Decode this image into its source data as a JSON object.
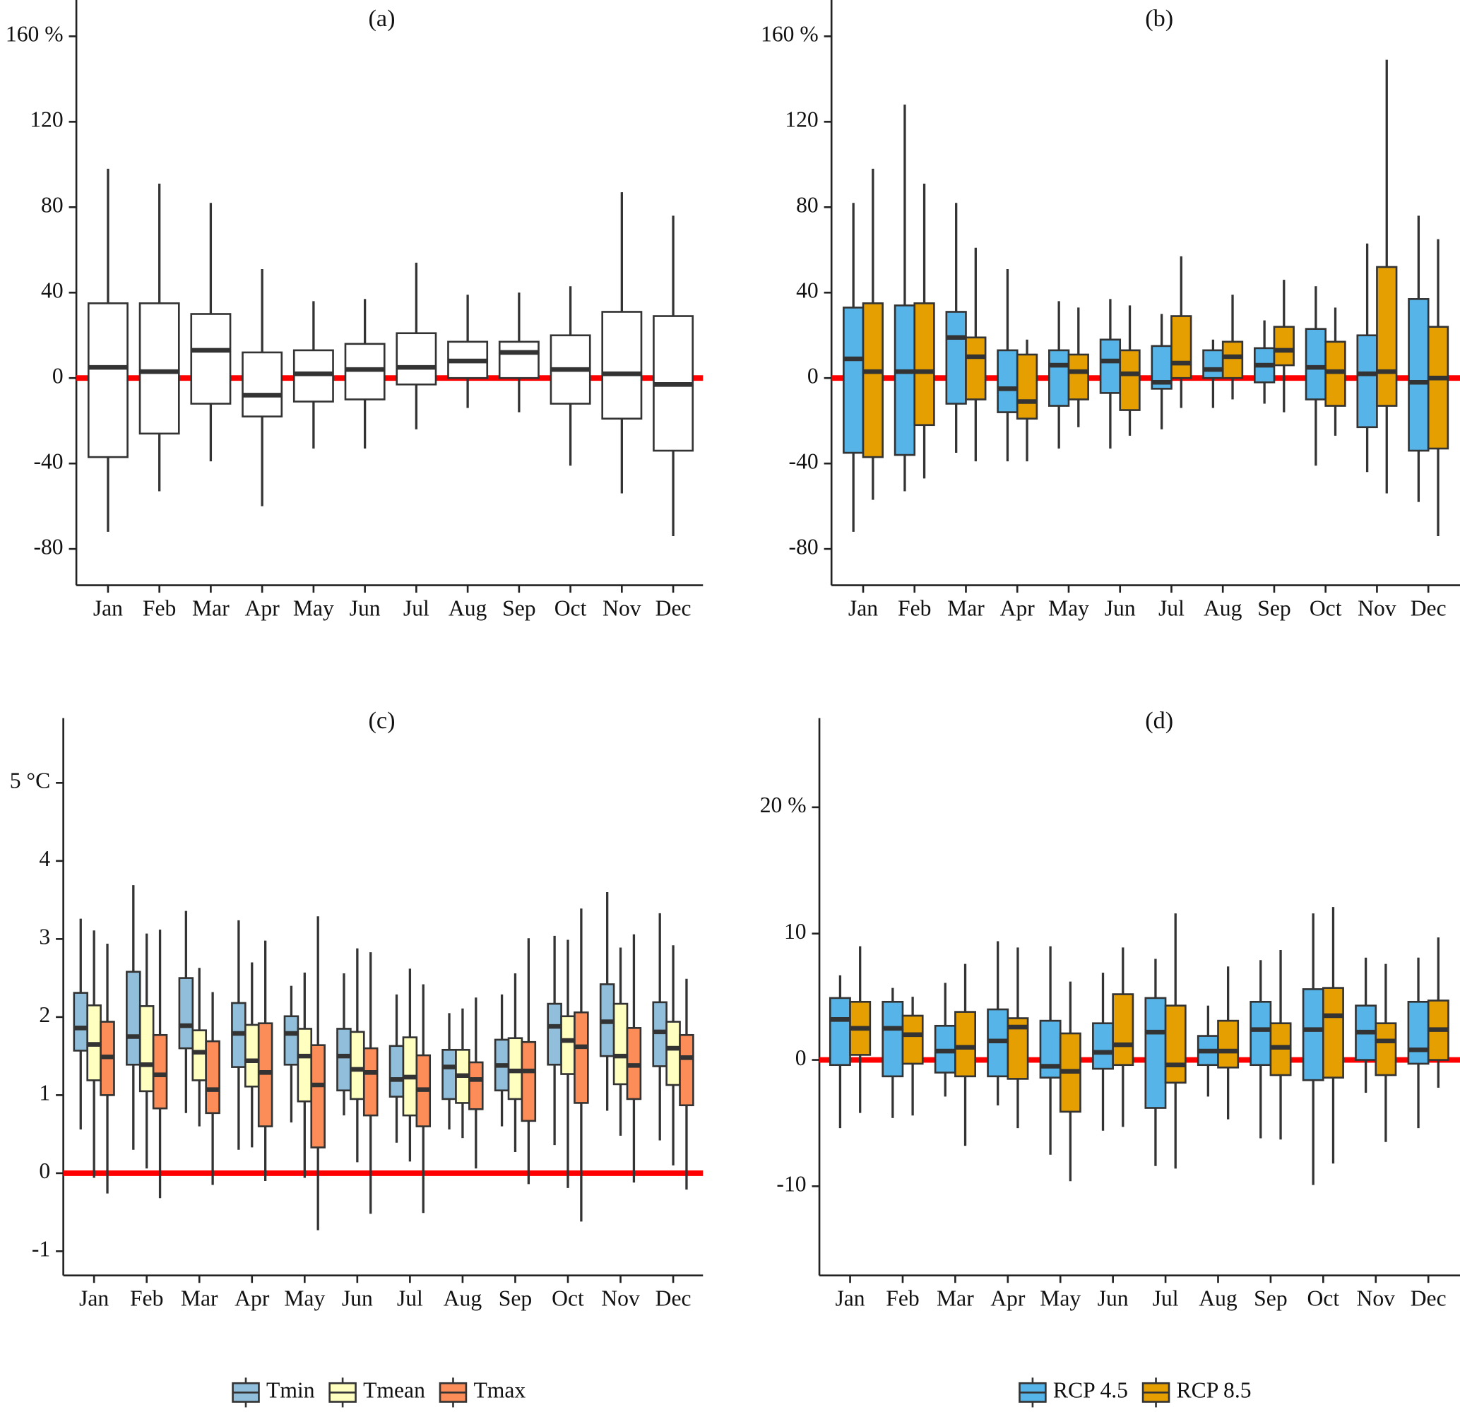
{
  "chart_data": [
    {
      "type": "box",
      "title": "(a)",
      "categories": [
        "Jan",
        "Feb",
        "Mar",
        "Apr",
        "May",
        "Jun",
        "Jul",
        "Aug",
        "Sep",
        "Oct",
        "Nov",
        "Dec"
      ],
      "series": [
        {
          "color": "#ffffff",
          "max": [
            98,
            91,
            82,
            51,
            36,
            37,
            54,
            39,
            40,
            43,
            87,
            76
          ],
          "q3": [
            35,
            35,
            30,
            12,
            13,
            16,
            21,
            17,
            17,
            20,
            31,
            29
          ],
          "median": [
            5,
            3,
            13,
            -8,
            2,
            4,
            5,
            8,
            12,
            4,
            2,
            -3
          ],
          "q1": [
            -37,
            -26,
            -12,
            -18,
            -11,
            -10,
            -3,
            0,
            0,
            -12,
            -19,
            -34
          ],
          "min": [
            -72,
            -53,
            -39,
            -60,
            -33,
            -33,
            -24,
            -14,
            -16,
            -41,
            -54,
            -74
          ]
        }
      ],
      "ylim": [
        -97,
        177
      ],
      "yticks": [
        -80,
        -40,
        0,
        40,
        80,
        120,
        {
          "value": 160,
          "label": "160 %"
        }
      ],
      "reference_line": {
        "value": 0,
        "color": "#ff0000"
      }
    },
    {
      "type": "box",
      "title": "(b)",
      "categories": [
        "Jan",
        "Feb",
        "Mar",
        "Apr",
        "May",
        "Jun",
        "Jul",
        "Aug",
        "Sep",
        "Oct",
        "Nov",
        "Dec"
      ],
      "series": [
        {
          "color": "#56B4E9",
          "max": [
            82,
            128,
            82,
            51,
            36,
            37,
            30,
            18,
            27,
            43,
            63,
            76
          ],
          "q3": [
            33,
            34,
            31,
            13,
            13,
            18,
            15,
            13,
            14,
            23,
            20,
            37
          ],
          "median": [
            9,
            3,
            19,
            -5,
            6,
            8,
            -2,
            4,
            6,
            5,
            2,
            -2
          ],
          "q1": [
            -35,
            -36,
            -12,
            -16,
            -13,
            -7,
            -5,
            0,
            -2,
            -10,
            -23,
            -34
          ],
          "min": [
            -72,
            -53,
            -35,
            -39,
            -33,
            -33,
            -24,
            -14,
            -12,
            -41,
            -44,
            -58
          ]
        },
        {
          "color": "#E69F00",
          "max": [
            98,
            91,
            61,
            18,
            33,
            34,
            57,
            39,
            46,
            33,
            149,
            65
          ],
          "q3": [
            35,
            35,
            19,
            11,
            11,
            13,
            29,
            17,
            24,
            17,
            52,
            24
          ],
          "median": [
            3,
            3,
            10,
            -11,
            3,
            2,
            7,
            10,
            13,
            3,
            3,
            0
          ],
          "q1": [
            -37,
            -22,
            -10,
            -19,
            -10,
            -15,
            0,
            0,
            6,
            -13,
            -13,
            -33
          ],
          "min": [
            -57,
            -47,
            -39,
            -39,
            -23,
            -27,
            -14,
            -10,
            -16,
            -27,
            -54,
            -74
          ]
        }
      ],
      "ylim": [
        -97,
        177
      ],
      "yticks": [
        -80,
        -40,
        0,
        40,
        80,
        120,
        {
          "value": 160,
          "label": "160 %"
        }
      ],
      "reference_line": {
        "value": 0,
        "color": "#ff0000"
      }
    },
    {
      "type": "box",
      "title": "(c)",
      "categories": [
        "Jan",
        "Feb",
        "Mar",
        "Apr",
        "May",
        "Jun",
        "Jul",
        "Aug",
        "Sep",
        "Oct",
        "Nov",
        "Dec"
      ],
      "series": [
        {
          "name": "Tmin",
          "color": "#91BFDB",
          "max": [
            3.26,
            3.69,
            3.36,
            3.24,
            2.4,
            2.56,
            2.29,
            2.05,
            2.29,
            3.04,
            3.6,
            3.33
          ],
          "q3": [
            2.31,
            2.58,
            2.5,
            2.18,
            2.01,
            1.85,
            1.63,
            1.58,
            1.71,
            2.17,
            2.42,
            2.19
          ],
          "median": [
            1.86,
            1.75,
            1.89,
            1.79,
            1.79,
            1.5,
            1.2,
            1.36,
            1.38,
            1.88,
            1.94,
            1.81
          ],
          "q1": [
            1.57,
            1.39,
            1.6,
            1.36,
            1.39,
            1.06,
            0.98,
            0.95,
            1.06,
            1.39,
            1.5,
            1.37
          ],
          "min": [
            0.56,
            0.3,
            0.77,
            0.3,
            0.65,
            0.74,
            0.39,
            0.56,
            0.6,
            0.36,
            0.8,
            0.42
          ]
        },
        {
          "name": "Tmean",
          "color": "#FFFFBF",
          "max": [
            3.11,
            3.07,
            2.63,
            2.7,
            2.57,
            2.88,
            2.62,
            2.11,
            2.56,
            2.99,
            2.89,
            2.92
          ],
          "q3": [
            2.15,
            2.14,
            1.83,
            1.9,
            1.85,
            1.81,
            1.74,
            1.58,
            1.73,
            2.01,
            2.17,
            1.94
          ],
          "median": [
            1.65,
            1.39,
            1.55,
            1.44,
            1.5,
            1.33,
            1.23,
            1.25,
            1.31,
            1.7,
            1.5,
            1.6
          ],
          "q1": [
            1.19,
            1.05,
            1.19,
            1.11,
            0.92,
            0.95,
            0.74,
            0.9,
            0.95,
            1.27,
            1.14,
            1.13
          ],
          "min": [
            -0.06,
            0.06,
            0.6,
            0.33,
            -0.06,
            0.14,
            0.15,
            0.45,
            0.27,
            -0.19,
            0.48,
            0.1
          ]
        },
        {
          "name": "Tmax",
          "color": "#FC8D59",
          "max": [
            2.94,
            3.12,
            2.32,
            2.98,
            3.29,
            2.83,
            2.42,
            2.25,
            3.01,
            3.39,
            3.06,
            2.49
          ],
          "q3": [
            1.94,
            1.77,
            1.69,
            1.92,
            1.64,
            1.6,
            1.51,
            1.42,
            1.68,
            2.06,
            1.86,
            1.77
          ],
          "median": [
            1.49,
            1.26,
            1.07,
            1.29,
            1.13,
            1.29,
            1.07,
            1.2,
            1.31,
            1.62,
            1.38,
            1.48
          ],
          "q1": [
            1.0,
            0.83,
            0.77,
            0.6,
            0.33,
            0.74,
            0.6,
            0.82,
            0.67,
            0.9,
            0.95,
            0.87
          ],
          "min": [
            -0.26,
            -0.32,
            -0.15,
            -0.1,
            -0.73,
            -0.52,
            -0.51,
            0.06,
            -0.14,
            -0.62,
            -0.12,
            -0.21
          ]
        }
      ],
      "ylim": [
        -1.31,
        5.83
      ],
      "yticks": [
        -1,
        0,
        1,
        2,
        3,
        4,
        {
          "value": 5,
          "label": "5 °C"
        }
      ],
      "reference_line": {
        "value": 0,
        "color": "#ff0000"
      },
      "legend": "bottom"
    },
    {
      "type": "box",
      "title": "(d)",
      "categories": [
        "Jan",
        "Feb",
        "Mar",
        "Apr",
        "May",
        "Jun",
        "Jul",
        "Aug",
        "Sep",
        "Oct",
        "Nov",
        "Dec"
      ],
      "series": [
        {
          "name": "RCP 4.5",
          "color": "#56B4E9",
          "max": [
            6.7,
            5.7,
            6.1,
            9.4,
            9.0,
            6.9,
            8.0,
            4.3,
            7.9,
            11.6,
            8.1,
            8.1
          ],
          "q3": [
            4.9,
            4.6,
            2.7,
            4.0,
            3.1,
            2.9,
            4.9,
            1.9,
            4.6,
            5.6,
            4.3,
            4.6
          ],
          "median": [
            3.2,
            2.5,
            0.7,
            1.5,
            -0.5,
            0.6,
            2.2,
            0.7,
            2.4,
            2.4,
            2.2,
            0.8
          ],
          "q1": [
            -0.4,
            -1.3,
            -1.0,
            -1.3,
            -1.4,
            -0.7,
            -3.8,
            -0.4,
            -0.4,
            -1.6,
            0,
            -0.3
          ],
          "min": [
            -5.4,
            -4.6,
            -2.9,
            -3.6,
            -7.5,
            -5.6,
            -8.4,
            -2.9,
            -6.2,
            -9.9,
            -2.6,
            -5.4
          ]
        },
        {
          "name": "RCP 8.5",
          "color": "#E69F00",
          "max": [
            9.0,
            5.0,
            7.6,
            8.9,
            6.2,
            8.9,
            11.6,
            7.4,
            8.7,
            12.1,
            7.6,
            9.7
          ],
          "q3": [
            4.6,
            3.5,
            3.8,
            3.3,
            2.1,
            5.2,
            4.3,
            3.1,
            2.9,
            5.7,
            2.9,
            4.7
          ],
          "median": [
            2.5,
            2.0,
            1.0,
            2.6,
            -0.9,
            1.2,
            -0.4,
            0.7,
            1.0,
            3.5,
            1.5,
            2.4
          ],
          "q1": [
            0.4,
            -0.3,
            -1.3,
            -1.5,
            -4.1,
            -0.4,
            -1.8,
            -0.6,
            -1.2,
            -1.4,
            -1.2,
            0
          ],
          "min": [
            -4.2,
            -4.4,
            -6.8,
            -5.4,
            -9.6,
            -5.3,
            -8.6,
            -4.7,
            -6.3,
            -8.2,
            -6.5,
            -2.2
          ]
        }
      ],
      "ylim": [
        -17.06,
        27.06
      ],
      "yticks": [
        -10,
        0,
        10,
        {
          "value": 20,
          "label": "20 %"
        }
      ],
      "reference_line": {
        "value": 0,
        "color": "#ff0000"
      },
      "legend": "bottom"
    }
  ]
}
